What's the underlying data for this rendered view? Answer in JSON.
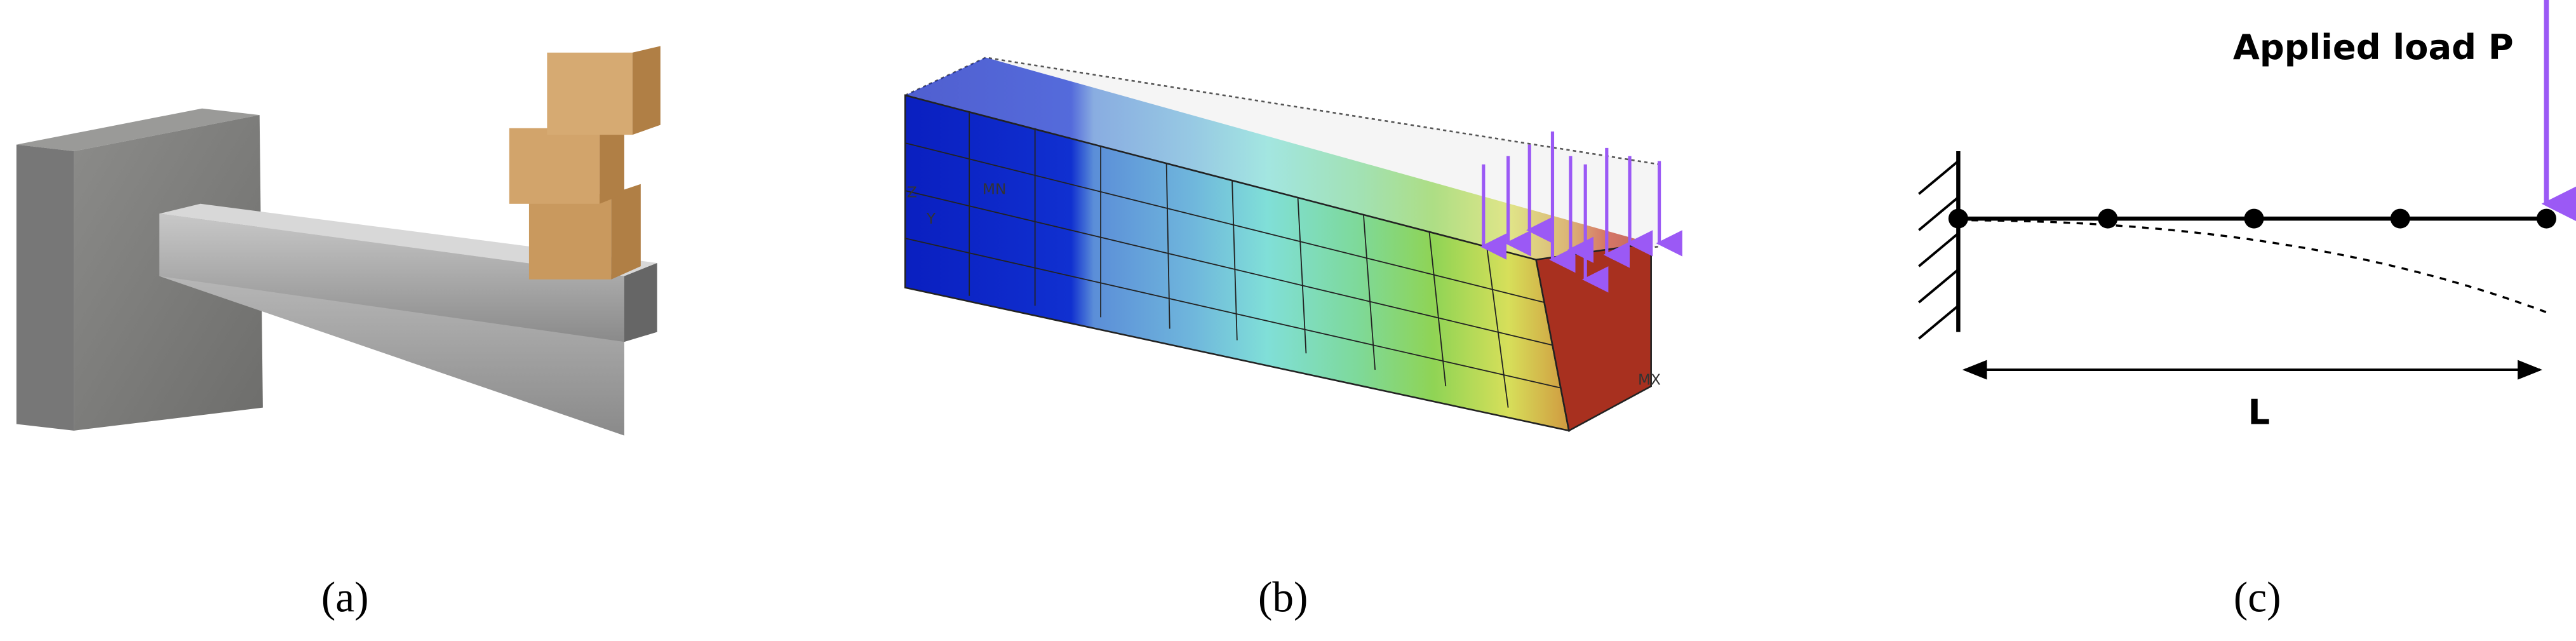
{
  "panels": [
    {
      "caption": "(a)"
    },
    {
      "caption": "(b)",
      "labels": [
        "Z",
        "Y",
        "MN",
        "MX"
      ]
    },
    {
      "caption": "(c)",
      "load_label": "Applied load P",
      "length_label": "L"
    }
  ]
}
